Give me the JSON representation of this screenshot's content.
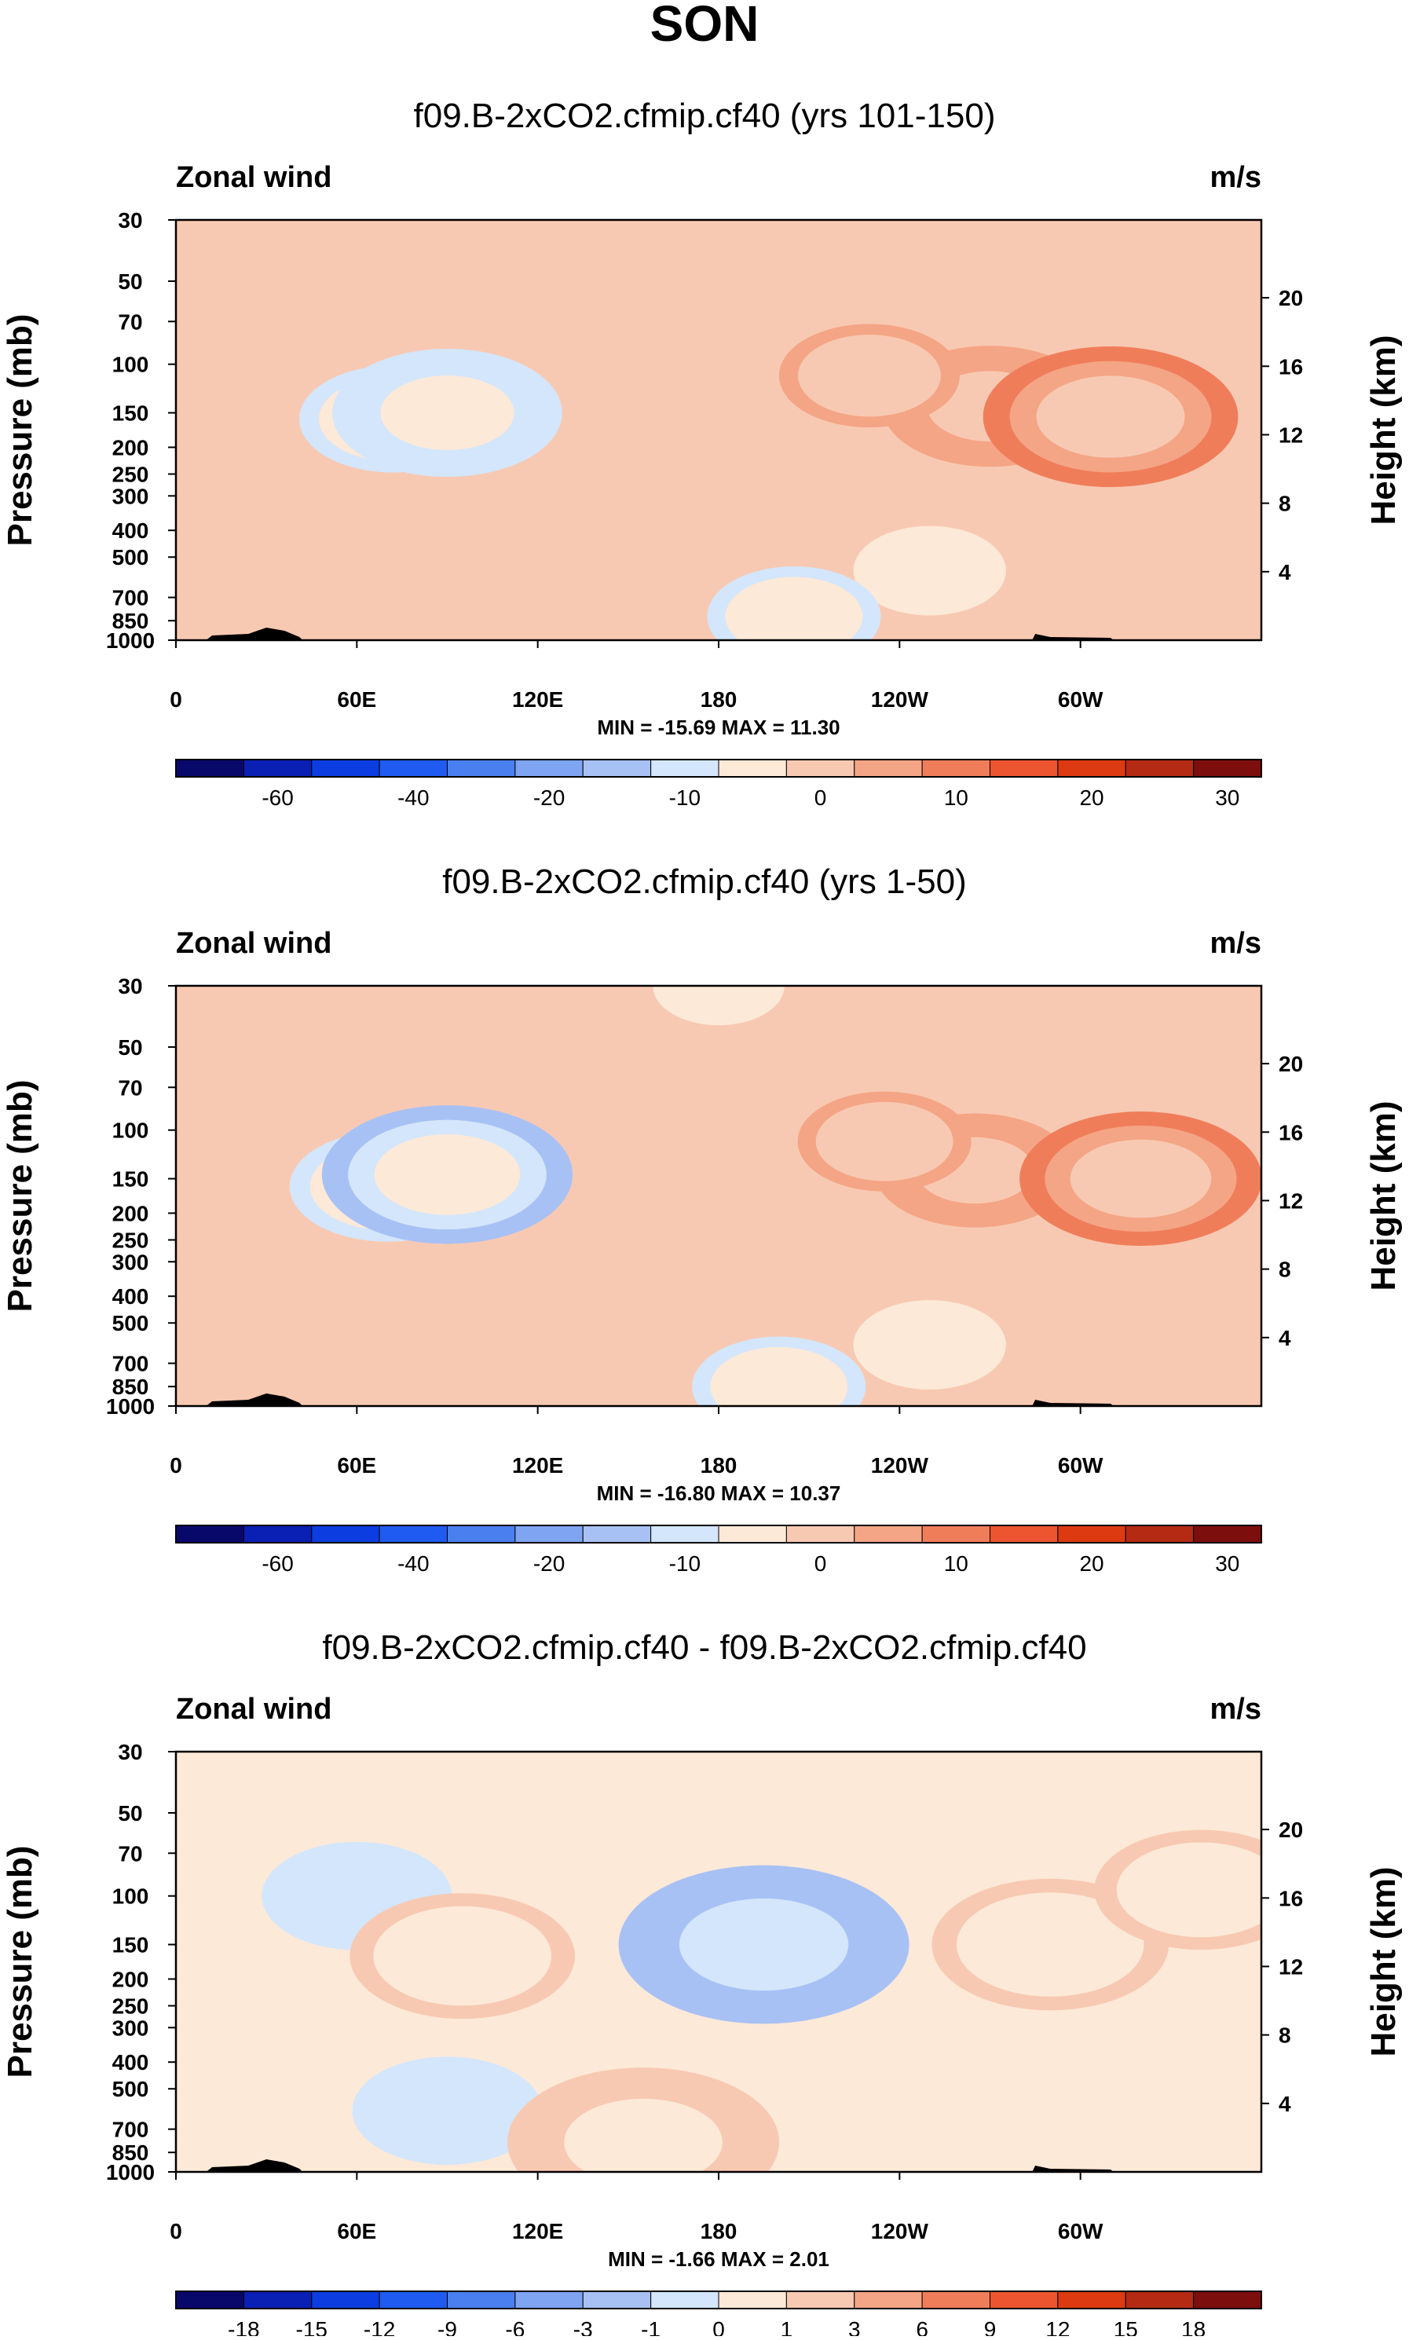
{
  "page_title": "SON",
  "palette": {
    "wind_colors": [
      "#08086b",
      "#0a1fb3",
      "#0c3de0",
      "#1f5bf0",
      "#4a7ff0",
      "#7ea4f2",
      "#a8c1f5",
      "#d3e6fb",
      "#fde9d8",
      "#f8c9b2",
      "#f4a585",
      "#f07d5a",
      "#ec5530",
      "#dd3a12",
      "#b52a13",
      "#7d0e0e"
    ],
    "wind_labels": [
      "-60",
      "-40",
      "-20",
      "-10",
      "0",
      "10",
      "20",
      "30"
    ],
    "diff_labels": [
      "-18",
      "-15",
      "-12",
      "-9",
      "-6",
      "-3",
      "-1",
      "0",
      "1",
      "3",
      "6",
      "9",
      "12",
      "15",
      "18"
    ]
  },
  "chart_data": [
    {
      "type": "heatmap",
      "title": "f09.B-2xCO2.cfmip.cf40 (yrs 101-150)",
      "left_label": "Zonal wind",
      "right_label": "m/s",
      "ylabel": "Pressure (mb)",
      "ylabel_right": "Height (km)",
      "x_ticks": [
        "0",
        "60E",
        "120E",
        "180",
        "120W",
        "60W"
      ],
      "x_tick_values": [
        0,
        60,
        120,
        180,
        240,
        300
      ],
      "xlim": [
        0,
        360
      ],
      "p_ticks": [
        "30",
        "50",
        "70",
        "100",
        "150",
        "200",
        "250",
        "300",
        "400",
        "500",
        "700",
        "850",
        "1000"
      ],
      "p_values": [
        30,
        50,
        70,
        100,
        150,
        200,
        250,
        300,
        400,
        500,
        700,
        850,
        1000
      ],
      "plim": [
        30,
        1000
      ],
      "height_ticks": [
        "20",
        "16",
        "12",
        "8",
        "4"
      ],
      "height_values": [
        20,
        16,
        12,
        8,
        4
      ],
      "min_max_text": "MIN = -15.69   MAX =  11.30",
      "min": -15.69,
      "max": 11.3,
      "color_levels": [
        -70,
        -60,
        -50,
        -40,
        -30,
        -20,
        -15,
        -10,
        -5,
        0,
        5,
        10,
        15,
        20,
        25,
        30
      ],
      "colorbar_labels": [
        "-60",
        "-40",
        "-20",
        "-10",
        "0",
        "10",
        "20",
        "30"
      ],
      "blobs": [
        {
          "lon": 72,
          "p": 158,
          "value": -6.5
        },
        {
          "lon": 90,
          "p": 150,
          "value": -9.5
        },
        {
          "lon": 270,
          "p": 142,
          "value": 8.5
        },
        {
          "lon": 310,
          "p": 155,
          "value": 11.3
        },
        {
          "lon": 230,
          "p": 110,
          "value": 6.0
        },
        {
          "lon": 250,
          "p": 560,
          "value": -4.0
        },
        {
          "lon": 205,
          "p": 820,
          "value": -5.5
        },
        {
          "lon": 80,
          "p": 680,
          "value": 4.2
        },
        {
          "lon": 20,
          "p": 950,
          "value": 4.5
        }
      ]
    },
    {
      "type": "heatmap",
      "title": "f09.B-2xCO2.cfmip.cf40 (yrs 1-50)",
      "left_label": "Zonal wind",
      "right_label": "m/s",
      "ylabel": "Pressure (mb)",
      "ylabel_right": "Height (km)",
      "x_ticks": [
        "0",
        "60E",
        "120E",
        "180",
        "120W",
        "60W"
      ],
      "x_tick_values": [
        0,
        60,
        120,
        180,
        240,
        300
      ],
      "xlim": [
        0,
        360
      ],
      "p_ticks": [
        "30",
        "50",
        "70",
        "100",
        "150",
        "200",
        "250",
        "300",
        "400",
        "500",
        "700",
        "850",
        "1000"
      ],
      "p_values": [
        30,
        50,
        70,
        100,
        150,
        200,
        250,
        300,
        400,
        500,
        700,
        850,
        1000
      ],
      "plim": [
        30,
        1000
      ],
      "height_ticks": [
        "20",
        "16",
        "12",
        "8",
        "4"
      ],
      "height_values": [
        20,
        16,
        12,
        8,
        4
      ],
      "min_max_text": "MIN = -16.80   MAX =  10.37",
      "min": -16.8,
      "max": 10.37,
      "color_levels": [
        -70,
        -60,
        -50,
        -40,
        -30,
        -20,
        -15,
        -10,
        -5,
        0,
        5,
        10,
        15,
        20,
        25,
        30
      ],
      "colorbar_labels": [
        "-60",
        "-40",
        "-20",
        "-10",
        "0",
        "10",
        "20",
        "30"
      ],
      "blobs": [
        {
          "lon": 70,
          "p": 160,
          "value": -7.0
        },
        {
          "lon": 90,
          "p": 145,
          "value": -11.0
        },
        {
          "lon": 265,
          "p": 140,
          "value": 7.5
        },
        {
          "lon": 320,
          "p": 150,
          "value": 10.4
        },
        {
          "lon": 235,
          "p": 110,
          "value": 5.5
        },
        {
          "lon": 250,
          "p": 600,
          "value": -4.0
        },
        {
          "lon": 200,
          "p": 850,
          "value": -5.5
        },
        {
          "lon": 85,
          "p": 690,
          "value": 4.0
        },
        {
          "lon": 180,
          "p": 30,
          "value": -2.5
        }
      ]
    },
    {
      "type": "heatmap",
      "title": "f09.B-2xCO2.cfmip.cf40 - f09.B-2xCO2.cfmip.cf40",
      "left_label": "Zonal wind",
      "right_label": "m/s",
      "ylabel": "Pressure (mb)",
      "ylabel_right": "Height (km)",
      "x_ticks": [
        "0",
        "60E",
        "120E",
        "180",
        "120W",
        "60W"
      ],
      "x_tick_values": [
        0,
        60,
        120,
        180,
        240,
        300
      ],
      "xlim": [
        0,
        360
      ],
      "p_ticks": [
        "30",
        "50",
        "70",
        "100",
        "150",
        "200",
        "250",
        "300",
        "400",
        "500",
        "700",
        "850",
        "1000"
      ],
      "p_values": [
        30,
        50,
        70,
        100,
        150,
        200,
        250,
        300,
        400,
        500,
        700,
        850,
        1000
      ],
      "plim": [
        30,
        1000
      ],
      "height_ticks": [
        "20",
        "16",
        "12",
        "8",
        "4"
      ],
      "height_values": [
        20,
        16,
        12,
        8,
        4
      ],
      "min_max_text": "MIN =  -1.66   MAX =   2.01",
      "min": -1.66,
      "max": 2.01,
      "color_levels": [
        -21,
        -18,
        -15,
        -12,
        -9,
        -6,
        -3,
        -1,
        0,
        1,
        3,
        6,
        9,
        12,
        15,
        18
      ],
      "colorbar_labels": [
        "-18",
        "-15",
        "-12",
        "-9",
        "-6",
        "-3",
        "-1",
        "0",
        "1",
        "3",
        "6",
        "9",
        "12",
        "15",
        "18"
      ],
      "blobs": [
        {
          "lon": 195,
          "p": 150,
          "value": -1.66
        },
        {
          "lon": 90,
          "p": 600,
          "value": -0.8
        },
        {
          "lon": 60,
          "p": 100,
          "value": -0.8
        },
        {
          "lon": 95,
          "p": 165,
          "value": 1.1
        },
        {
          "lon": 290,
          "p": 150,
          "value": 1.2
        },
        {
          "lon": 155,
          "p": 780,
          "value": 1.5
        },
        {
          "lon": 340,
          "p": 95,
          "value": 1.0
        }
      ]
    }
  ]
}
